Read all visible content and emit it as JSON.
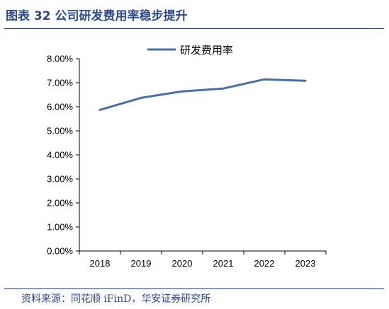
{
  "header": {
    "title": "图表 32 公司研发费用率稳步提升"
  },
  "footer": {
    "source": "资料来源：同花顺 iFinD，华安证券研究所"
  },
  "chart_data": {
    "type": "line",
    "categories": [
      "2018",
      "2019",
      "2020",
      "2021",
      "2022",
      "2023"
    ],
    "series": [
      {
        "name": "研发费用率",
        "values": [
          5.87,
          6.37,
          6.64,
          6.76,
          7.14,
          7.08
        ]
      }
    ],
    "y_ticks": [
      "0.00%",
      "1.00%",
      "2.00%",
      "3.00%",
      "4.00%",
      "5.00%",
      "6.00%",
      "7.00%",
      "8.00%"
    ],
    "ylim": [
      0,
      8
    ],
    "legend_position": "top",
    "grid": false,
    "line_color": "#4a6fa5"
  }
}
